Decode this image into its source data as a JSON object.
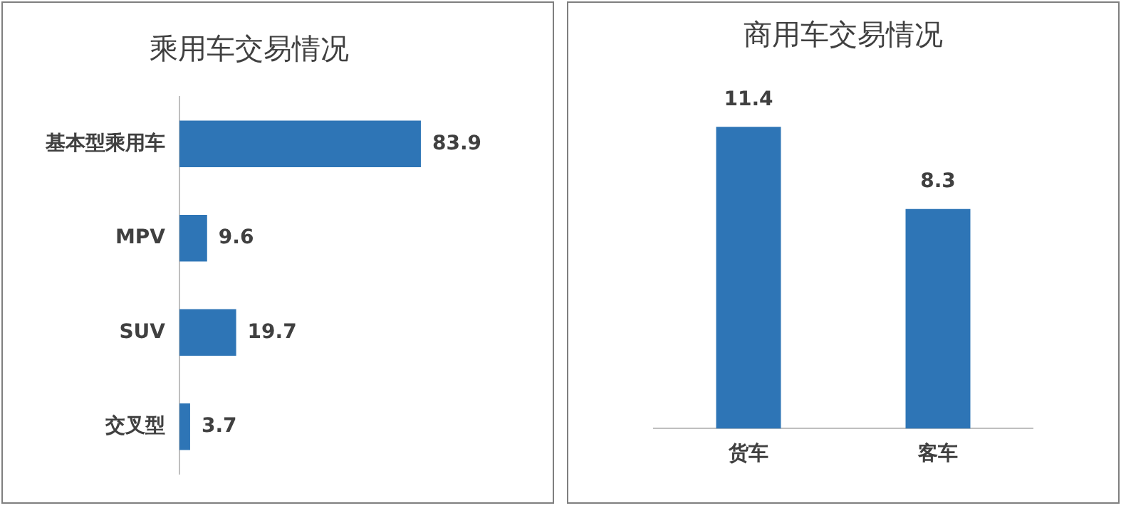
{
  "chart_data": [
    {
      "type": "bar",
      "title": "乘用车交易情况",
      "orientation": "horizontal",
      "categories": [
        "基本型乘用车",
        "MPV",
        "SUV",
        "交叉型"
      ],
      "values": [
        83.9,
        9.6,
        19.7,
        3.7
      ],
      "color": "#2e75b6",
      "data_labels": true
    },
    {
      "type": "bar",
      "title": "商用车交易情况",
      "categories": [
        "货车",
        "客车"
      ],
      "values": [
        11.4,
        8.3
      ],
      "color": "#2e75b6",
      "data_labels": true
    }
  ]
}
